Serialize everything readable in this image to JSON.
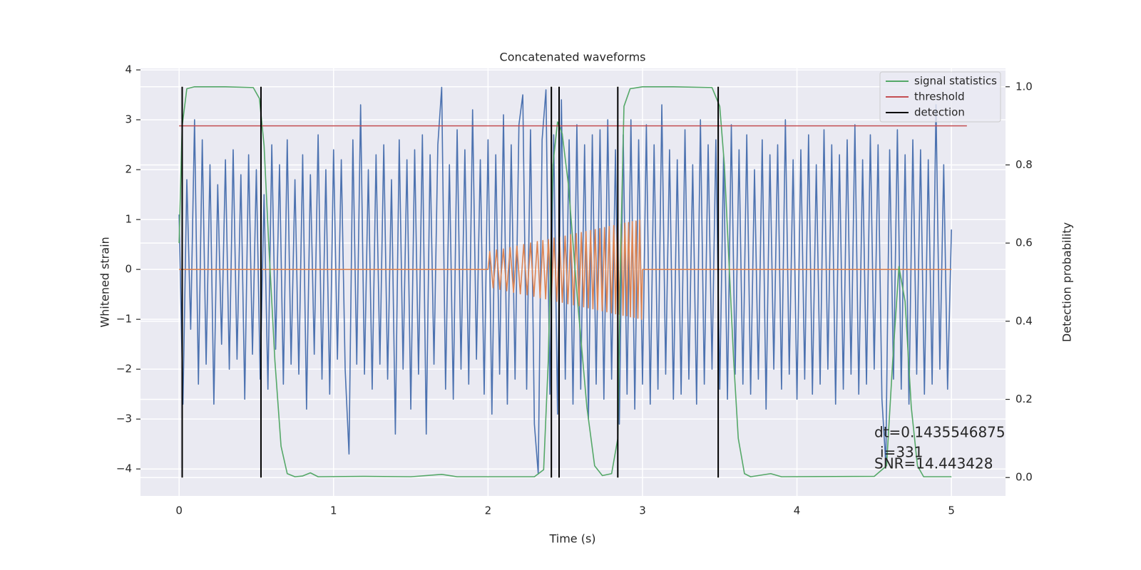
{
  "chart_data": {
    "type": "line",
    "title": "Concatenated waveforms",
    "xlabel": "Time (s)",
    "ylabel": "Whitened strain",
    "y2label": "Detection probability",
    "annotations": [
      "dt=0.1435546875",
      "i=331",
      "SNR=14.443428"
    ],
    "xlim": [
      -0.25,
      5.35
    ],
    "ylim": [
      -4.54,
      4.03
    ],
    "y2lim": [
      -0.047,
      1.047
    ],
    "xticks": [
      0,
      1,
      2,
      3,
      4,
      5
    ],
    "yticks": [
      {
        "value": -4,
        "label": "−4"
      },
      {
        "value": -3,
        "label": "−3"
      },
      {
        "value": -2,
        "label": "−2"
      },
      {
        "value": -1,
        "label": "−1"
      },
      0,
      1,
      2,
      3,
      4
    ],
    "y2ticks": [
      {
        "value": 0,
        "label": "0.0"
      },
      0.2,
      0.4,
      0.6,
      0.8,
      {
        "value": 1,
        "label": "1.0"
      }
    ],
    "grid": true,
    "legend": "upper right",
    "strain_series": [
      {
        "color": "#4c72b0",
        "x": [
          0,
          0.025,
          0.05,
          0.075,
          0.1,
          0.125,
          0.15,
          0.175,
          0.2,
          0.225,
          0.25,
          0.275,
          0.3,
          0.325,
          0.35,
          0.375,
          0.4,
          0.425,
          0.45,
          0.475,
          0.5,
          0.525,
          0.55,
          0.575,
          0.6,
          0.625,
          0.65,
          0.675,
          0.7,
          0.725,
          0.75,
          0.775,
          0.8,
          0.825,
          0.85,
          0.875,
          0.9,
          0.925,
          0.95,
          0.975,
          1,
          1.025,
          1.05,
          1.075,
          1.1,
          1.125,
          1.15,
          1.175,
          1.2,
          1.225,
          1.25,
          1.275,
          1.3,
          1.325,
          1.35,
          1.375,
          1.4,
          1.425,
          1.45,
          1.475,
          1.5,
          1.525,
          1.55,
          1.575,
          1.6,
          1.625,
          1.65,
          1.675,
          1.7,
          1.725,
          1.75,
          1.775,
          1.8,
          1.825,
          1.85,
          1.875,
          1.9,
          1.925,
          1.95,
          1.975,
          2,
          2.025,
          2.05,
          2.075,
          2.1,
          2.125,
          2.15,
          2.175,
          2.2,
          2.225,
          2.25,
          2.275,
          2.3,
          2.325,
          2.35,
          2.375,
          2.4,
          2.425,
          2.45,
          2.475,
          2.5,
          2.525,
          2.55,
          2.575,
          2.6,
          2.625,
          2.65,
          2.675,
          2.7,
          2.725,
          2.75,
          2.775,
          2.8,
          2.825,
          2.85,
          2.875,
          2.9,
          2.925,
          2.95,
          2.975,
          3,
          3.025,
          3.05,
          3.075,
          3.1,
          3.125,
          3.15,
          3.175,
          3.2,
          3.225,
          3.25,
          3.275,
          3.3,
          3.325,
          3.35,
          3.375,
          3.4,
          3.425,
          3.45,
          3.475,
          3.5,
          3.525,
          3.55,
          3.575,
          3.6,
          3.625,
          3.65,
          3.675,
          3.7,
          3.725,
          3.75,
          3.775,
          3.8,
          3.825,
          3.85,
          3.875,
          3.9,
          3.925,
          3.95,
          3.975,
          4,
          4.025,
          4.05,
          4.075,
          4.1,
          4.125,
          4.15,
          4.175,
          4.2,
          4.225,
          4.25,
          4.275,
          4.3,
          4.325,
          4.35,
          4.375,
          4.4,
          4.425,
          4.45,
          4.475,
          4.5,
          4.525,
          4.55,
          4.575,
          4.6,
          4.625,
          4.65,
          4.675,
          4.7,
          4.725,
          4.75,
          4.775,
          4.8,
          4.825,
          4.85,
          4.875,
          4.9,
          4.925,
          4.95,
          4.975,
          5
        ],
        "values": [
          1.1,
          -2.7,
          1.8,
          -1.2,
          3.0,
          -2.3,
          2.6,
          -1.9,
          2.1,
          -2.7,
          1.7,
          -1.5,
          2.2,
          -2.0,
          2.4,
          -1.8,
          1.9,
          -2.6,
          2.3,
          -1.7,
          2.0,
          -2.2,
          1.5,
          -2.4,
          2.5,
          -1.6,
          2.1,
          -2.3,
          2.6,
          -1.9,
          1.8,
          -2.1,
          2.3,
          -2.8,
          1.9,
          -1.7,
          2.7,
          -2.2,
          2.0,
          -2.5,
          2.4,
          -1.8,
          2.2,
          -2.0,
          -3.7,
          2.6,
          -1.9,
          3.3,
          -2.1,
          2.0,
          -2.4,
          2.3,
          -1.9,
          2.5,
          -2.2,
          1.8,
          -3.3,
          2.6,
          -2.0,
          2.2,
          -2.8,
          2.4,
          -2.1,
          2.7,
          -3.3,
          2.3,
          -1.9,
          2.5,
          3.65,
          -2.4,
          2.1,
          -2.6,
          2.8,
          -2.0,
          2.4,
          -2.3,
          3.2,
          -1.8,
          2.2,
          -2.5,
          2.6,
          -2.9,
          2.3,
          -2.1,
          3.1,
          -2.7,
          2.5,
          -2.2,
          2.9,
          3.5,
          -2.4,
          2.8,
          -3.1,
          -4.1,
          2.6,
          3.6,
          -2.5,
          2.7,
          -2.9,
          3.4,
          -2.2,
          2.6,
          -2.7,
          2.9,
          -2.4,
          2.5,
          -3.0,
          2.7,
          -2.3,
          2.8,
          -2.6,
          3.0,
          -2.2,
          2.4,
          -3.1,
          2.7,
          -2.5,
          3.0,
          -2.8,
          2.6,
          -2.3,
          2.9,
          -2.7,
          2.5,
          -2.4,
          3.3,
          -2.1,
          2.4,
          -2.6,
          2.2,
          -2.5,
          2.8,
          -2.2,
          2.1,
          -2.7,
          3.0,
          -2.3,
          2.5,
          -2.0,
          2.6,
          -2.4,
          2.3,
          -2.6,
          2.9,
          -2.1,
          2.4,
          -2.3,
          2.7,
          -2.5,
          2.0,
          -2.2,
          2.6,
          -2.8,
          2.3,
          -2.0,
          2.5,
          -2.4,
          3.0,
          -2.1,
          2.2,
          -2.6,
          2.4,
          -2.2,
          2.7,
          -2.5,
          2.1,
          -2.3,
          2.8,
          -2.0,
          2.5,
          -2.7,
          2.3,
          -2.4,
          2.6,
          -2.1,
          2.9,
          -2.5,
          2.2,
          -2.3,
          2.7,
          -2.0,
          2.5,
          -2.6,
          -3.9,
          2.4,
          -2.2,
          2.8,
          -2.4,
          2.3,
          -2.7,
          2.6,
          -2.1,
          2.4,
          -2.5,
          2.2,
          -2.3,
          3.3,
          -2.0,
          2.1,
          -2.4,
          0.8
        ]
      },
      {
        "color": "#dd8452",
        "x": [
          0,
          2,
          2.011,
          2.033,
          2.055,
          2.077,
          2.099,
          2.121,
          2.143,
          2.165,
          2.187,
          2.209,
          2.231,
          2.253,
          2.275,
          2.297,
          2.319,
          2.337,
          2.355,
          2.373,
          2.391,
          2.409,
          2.427,
          2.445,
          2.463,
          2.481,
          2.499,
          2.517,
          2.535,
          2.553,
          2.571,
          2.589,
          2.604,
          2.619,
          2.634,
          2.649,
          2.664,
          2.679,
          2.694,
          2.709,
          2.724,
          2.739,
          2.754,
          2.769,
          2.784,
          2.799,
          2.814,
          2.826,
          2.838,
          2.85,
          2.862,
          2.874,
          2.886,
          2.898,
          2.91,
          2.922,
          2.934,
          2.946,
          2.958,
          2.97,
          2.982,
          2.994,
          3,
          5
        ],
        "values": [
          0,
          0,
          0.36,
          -0.37,
          0.39,
          -0.4,
          0.41,
          -0.43,
          0.44,
          -0.46,
          0.47,
          -0.49,
          0.5,
          -0.51,
          0.53,
          -0.54,
          0.56,
          -0.57,
          0.58,
          -0.59,
          0.6,
          -0.62,
          0.63,
          -0.64,
          0.65,
          -0.66,
          0.67,
          -0.69,
          0.7,
          -0.71,
          0.72,
          -0.73,
          0.74,
          -0.75,
          0.76,
          -0.77,
          0.78,
          -0.79,
          0.8,
          -0.81,
          0.82,
          -0.83,
          0.84,
          -0.85,
          0.86,
          -0.87,
          0.88,
          -0.89,
          0.89,
          -0.9,
          0.91,
          -0.92,
          0.93,
          -0.93,
          0.94,
          -0.95,
          0.96,
          -0.96,
          0.97,
          -0.98,
          0.99,
          -1.0,
          0,
          0
        ]
      }
    ],
    "series": [
      {
        "name": "signal statistics",
        "color": "#55a868",
        "axis": "y2",
        "x": [
          0,
          0.02,
          0.05,
          0.1,
          0.3,
          0.48,
          0.52,
          0.55,
          0.58,
          0.62,
          0.66,
          0.7,
          0.75,
          0.8,
          0.85,
          0.9,
          1.2,
          1.5,
          1.7,
          1.8,
          2.3,
          2.36,
          2.39,
          2.42,
          2.45,
          2.48,
          2.52,
          2.58,
          2.64,
          2.69,
          2.74,
          2.8,
          2.84,
          2.86,
          2.88,
          2.92,
          3,
          3.2,
          3.45,
          3.5,
          3.53,
          3.56,
          3.59,
          3.62,
          3.66,
          3.7,
          3.83,
          3.9,
          4.5,
          4.58,
          4.62,
          4.66,
          4.7,
          4.74,
          4.78,
          4.82,
          5
        ],
        "values": [
          0.6,
          0.9,
          0.995,
          1.0,
          1.0,
          0.998,
          0.97,
          0.85,
          0.6,
          0.3,
          0.08,
          0.01,
          0.002,
          0.004,
          0.012,
          0.002,
          0.003,
          0.002,
          0.008,
          0.002,
          0.002,
          0.02,
          0.3,
          0.8,
          0.91,
          0.88,
          0.75,
          0.45,
          0.18,
          0.03,
          0.005,
          0.01,
          0.1,
          0.6,
          0.95,
          0.995,
          1.0,
          1.0,
          0.998,
          0.95,
          0.8,
          0.55,
          0.3,
          0.1,
          0.01,
          0.002,
          0.01,
          0.002,
          0.003,
          0.03,
          0.3,
          0.54,
          0.45,
          0.18,
          0.03,
          0.002,
          0.002
        ]
      },
      {
        "name": "threshold",
        "color": "#c44e52",
        "axis": "y2",
        "x": [
          0,
          5.1
        ],
        "values": [
          0.9,
          0.9
        ]
      },
      {
        "name": "detection",
        "color": "#000000",
        "axis": "y2",
        "x": [
          0.02,
          0.53,
          2.41,
          2.46,
          2.84,
          3.49
        ],
        "ymin": 0,
        "ymax": 1
      }
    ]
  }
}
